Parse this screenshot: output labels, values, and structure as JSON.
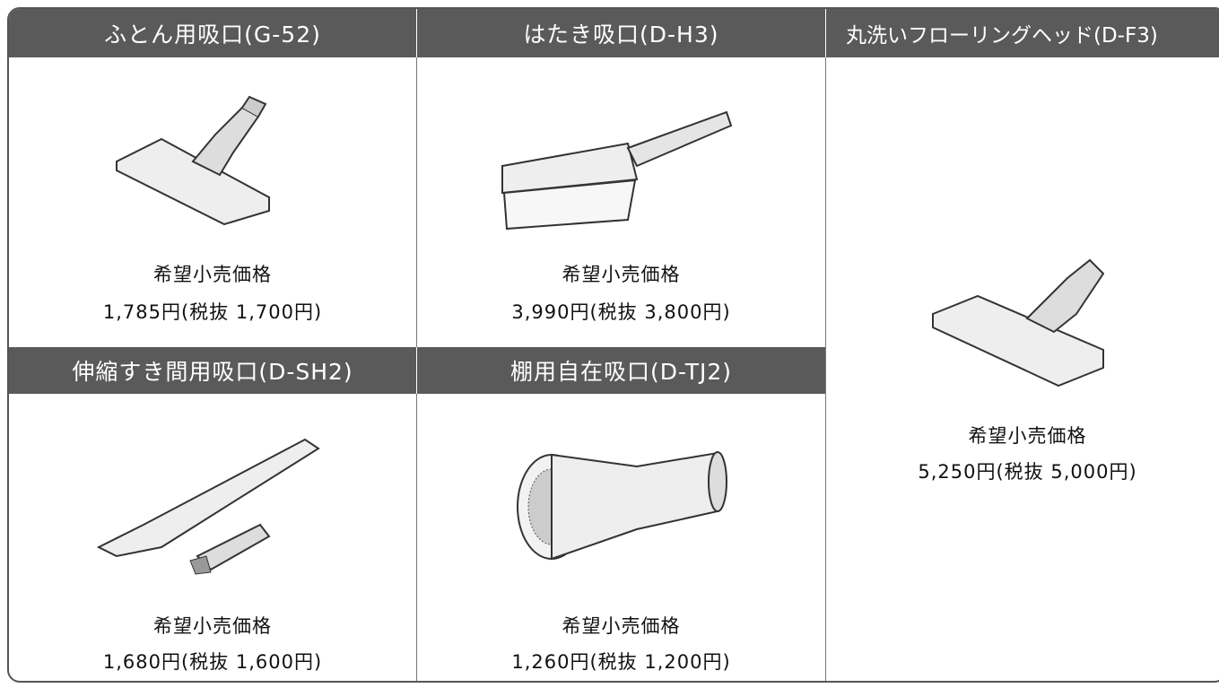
{
  "products": [
    {
      "name": "ふとん用吸口(G-52)",
      "price_label": "希望小売価格",
      "price": "1,785円(税抜 1,700円)"
    },
    {
      "name": "はたき吸口(D-H3)",
      "price_label": "希望小売価格",
      "price": "3,990円(税抜 3,800円)"
    },
    {
      "name": "丸洗いフローリングヘッド(D-F3)",
      "price_label": "希望小売価格",
      "price": "5,250円(税抜 5,000円)"
    },
    {
      "name": "伸縮すき間用吸口(D-SH2)",
      "price_label": "希望小売価格",
      "price": "1,680円(税抜 1,600円)"
    },
    {
      "name": "棚用自在吸口(D-TJ2)",
      "price_label": "希望小売価格",
      "price": "1,260円(税抜 1,200円)"
    }
  ]
}
